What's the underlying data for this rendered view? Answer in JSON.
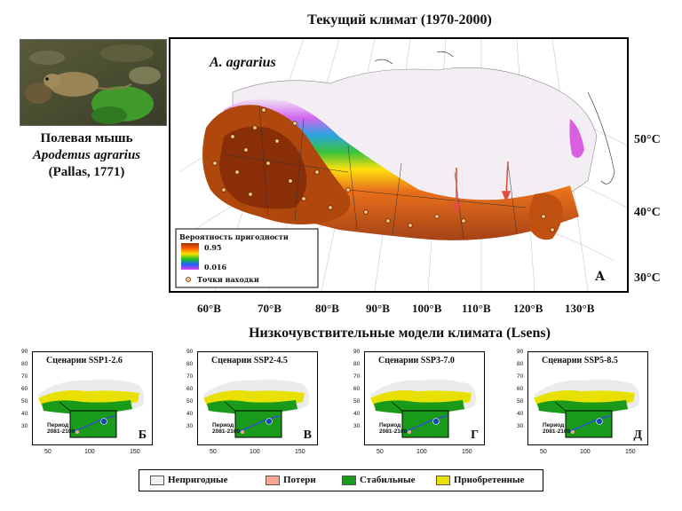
{
  "main_title": "Текущий климат (1970-2000)",
  "species": {
    "common_name": "Полевая мышь",
    "latin_name": "Apodemus agrarius",
    "authority": "(Pallas, 1771)"
  },
  "main_map": {
    "species_label": "A. agrarius",
    "panel_letter": "А",
    "legend_title": "Вероятность пригодности",
    "legend_max": "0.95",
    "legend_min": "0.016",
    "points_label": "Точки находки",
    "lat_labels": [
      "50°С",
      "40°С",
      "30°С"
    ],
    "lon_labels": [
      "60°В",
      "70°В",
      "80°В",
      "90°В",
      "100°В",
      "110°В",
      "120°В",
      "130°В"
    ],
    "colors": {
      "high": "#a0380a",
      "mid": "#ffe000",
      "low": "#d060f0",
      "none": "#f4f0f4",
      "arrow": "#e05040"
    }
  },
  "subtitle": "Низкочувствительные модели климата (Lsens)",
  "scenarios": [
    {
      "title": "Сценарии SSP1-2.6",
      "letter": "Б"
    },
    {
      "title": "Сценарии SSP2-4.5",
      "letter": "В"
    },
    {
      "title": "Сценарии SSP3-7.0",
      "letter": "Г"
    },
    {
      "title": "Сценарии SSP5-8.5",
      "letter": "Д"
    }
  ],
  "period_label": "Период",
  "period_value": "2081-2100",
  "scenario_yticks": [
    "90",
    "80",
    "70",
    "60",
    "50",
    "40",
    "30"
  ],
  "scenario_xticks": [
    "50",
    "100",
    "150"
  ],
  "legend": [
    {
      "label": "Непригодные",
      "color": "#f0f0f0"
    },
    {
      "label": "Потери",
      "color": "#f4a890"
    },
    {
      "label": "Стабильные",
      "color": "#1a9a1a"
    },
    {
      "label": "Приобретенные",
      "color": "#e8e000"
    }
  ]
}
